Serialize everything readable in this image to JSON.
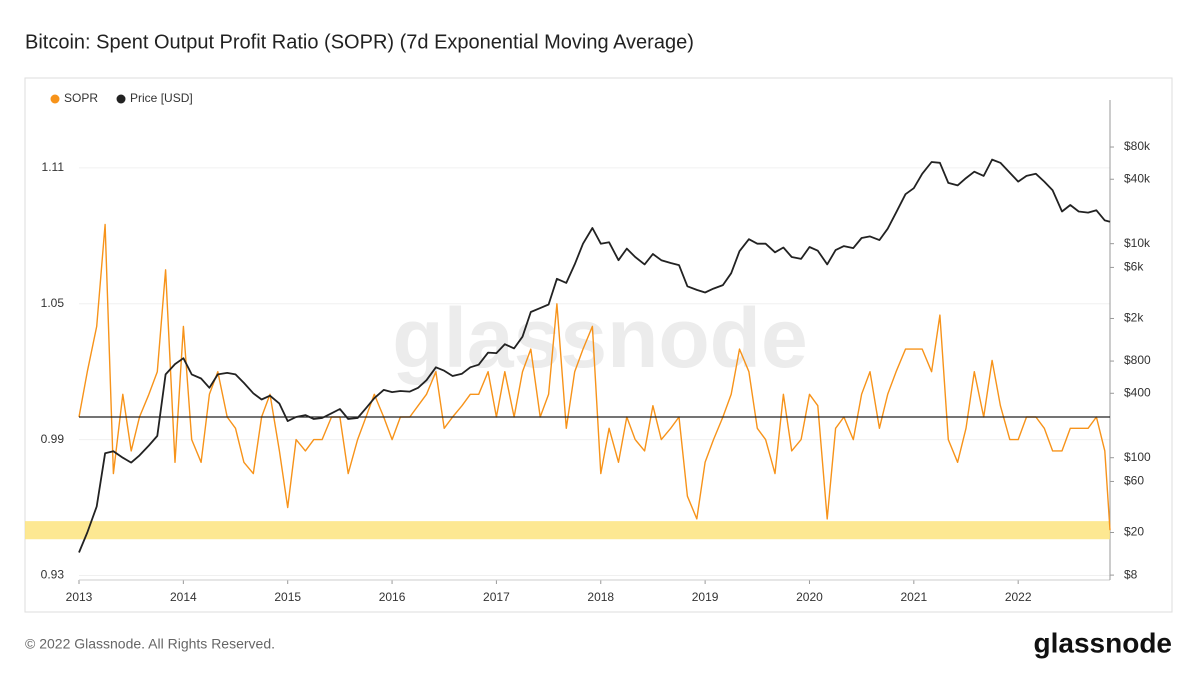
{
  "chart_data": {
    "type": "line",
    "title": "Bitcoin: Spent Output Profit Ratio (SOPR) (7d Exponential Moving Average)",
    "watermark": "glassnode",
    "footer": "© 2022 Glassnode. All Rights Reserved.",
    "brand": "glassnode",
    "x": [
      2013,
      2013.08,
      2013.17,
      2013.25,
      2013.33,
      2013.42,
      2013.5,
      2013.58,
      2013.67,
      2013.75,
      2013.83,
      2013.92,
      2014,
      2014.08,
      2014.17,
      2014.25,
      2014.33,
      2014.42,
      2014.5,
      2014.58,
      2014.67,
      2014.75,
      2014.83,
      2014.92,
      2015,
      2015.08,
      2015.17,
      2015.25,
      2015.33,
      2015.42,
      2015.5,
      2015.58,
      2015.67,
      2015.75,
      2015.83,
      2015.92,
      2016,
      2016.08,
      2016.17,
      2016.25,
      2016.33,
      2016.42,
      2016.5,
      2016.58,
      2016.67,
      2016.75,
      2016.83,
      2016.92,
      2017,
      2017.08,
      2017.17,
      2017.25,
      2017.33,
      2017.42,
      2017.5,
      2017.58,
      2017.67,
      2017.75,
      2017.83,
      2017.92,
      2018,
      2018.08,
      2018.17,
      2018.25,
      2018.33,
      2018.42,
      2018.5,
      2018.58,
      2018.67,
      2018.75,
      2018.83,
      2018.92,
      2019,
      2019.08,
      2019.17,
      2019.25,
      2019.33,
      2019.42,
      2019.5,
      2019.58,
      2019.67,
      2019.75,
      2019.83,
      2019.92,
      2020,
      2020.08,
      2020.17,
      2020.25,
      2020.33,
      2020.42,
      2020.5,
      2020.58,
      2020.67,
      2020.75,
      2020.83,
      2020.92,
      2021,
      2021.08,
      2021.17,
      2021.25,
      2021.33,
      2021.42,
      2021.5,
      2021.58,
      2021.67,
      2021.75,
      2021.83,
      2021.92,
      2022,
      2022.08,
      2022.17,
      2022.25,
      2022.33,
      2022.42,
      2022.5,
      2022.58,
      2022.67,
      2022.75,
      2022.83,
      2022.88
    ],
    "series": [
      {
        "name": "SOPR",
        "color": "#f7931a",
        "values": [
          1.0,
          1.02,
          1.04,
          1.085,
          0.975,
          1.01,
          0.985,
          1.0,
          1.01,
          1.02,
          1.065,
          0.98,
          1.04,
          0.99,
          0.98,
          1.01,
          1.02,
          1.0,
          0.995,
          0.98,
          0.975,
          1.0,
          1.01,
          0.985,
          0.96,
          0.99,
          0.985,
          0.99,
          0.99,
          1.0,
          1.0,
          0.975,
          0.99,
          1.0,
          1.01,
          1.0,
          0.99,
          1.0,
          1.0,
          1.005,
          1.01,
          1.02,
          0.995,
          1.0,
          1.005,
          1.01,
          1.01,
          1.02,
          1.0,
          1.02,
          1.0,
          1.02,
          1.03,
          1.0,
          1.01,
          1.05,
          0.995,
          1.02,
          1.03,
          1.04,
          0.975,
          0.995,
          0.98,
          1.0,
          0.99,
          0.985,
          1.005,
          0.99,
          0.995,
          1.0,
          0.965,
          0.955,
          0.98,
          0.99,
          1.0,
          1.01,
          1.03,
          1.02,
          0.995,
          0.99,
          0.975,
          1.01,
          0.985,
          0.99,
          1.01,
          1.005,
          0.955,
          0.995,
          1.0,
          0.99,
          1.01,
          1.02,
          0.995,
          1.01,
          1.02,
          1.03,
          1.03,
          1.03,
          1.02,
          1.045,
          0.99,
          0.98,
          0.995,
          1.02,
          1.0,
          1.025,
          1.005,
          0.99,
          0.99,
          1.0,
          1.0,
          0.995,
          0.985,
          0.985,
          0.995,
          0.995,
          0.995,
          1.0,
          0.985,
          0.95
        ]
      },
      {
        "name": "Price [USD]",
        "color": "#222222",
        "axis": "y2",
        "values": [
          13,
          20,
          35,
          110,
          115,
          100,
          90,
          105,
          130,
          160,
          600,
          750,
          850,
          600,
          550,
          450,
          600,
          620,
          600,
          500,
          400,
          350,
          380,
          320,
          220,
          240,
          250,
          230,
          235,
          260,
          285,
          230,
          235,
          290,
          360,
          430,
          410,
          420,
          415,
          450,
          530,
          700,
          650,
          580,
          610,
          700,
          740,
          960,
          950,
          1150,
          1050,
          1350,
          2300,
          2500,
          2700,
          4700,
          4300,
          6400,
          10000,
          14000,
          10000,
          10300,
          7000,
          9000,
          7500,
          6400,
          8000,
          7000,
          6600,
          6300,
          4000,
          3700,
          3500,
          3800,
          4100,
          5300,
          8500,
          11000,
          10000,
          10000,
          8300,
          9200,
          7500,
          7200,
          9300,
          8600,
          6400,
          8700,
          9500,
          9100,
          11300,
          11700,
          10800,
          13800,
          19500,
          29000,
          33000,
          45000,
          58000,
          57000,
          37000,
          35000,
          41000,
          47000,
          43000,
          61000,
          57000,
          46000,
          38000,
          43000,
          45000,
          38000,
          31500,
          20000,
          23000,
          20000,
          19500,
          20500,
          16500,
          16000
        ]
      }
    ],
    "xlim": [
      2013,
      2022.88
    ],
    "xticks": [
      2013,
      2014,
      2015,
      2016,
      2017,
      2018,
      2019,
      2020,
      2021,
      2022
    ],
    "ylim": [
      0.928,
      1.14
    ],
    "yticks": [
      0.93,
      0.99,
      1.05,
      1.11
    ],
    "y2lim": [
      7.2,
      220000
    ],
    "y2log": true,
    "y2ticks": [
      {
        "value": 8,
        "label": "$8"
      },
      {
        "value": 20,
        "label": "$20"
      },
      {
        "value": 60,
        "label": "$60"
      },
      {
        "value": 100,
        "label": "$100"
      },
      {
        "value": 400,
        "label": "$400"
      },
      {
        "value": 800,
        "label": "$800"
      },
      {
        "value": 2000,
        "label": "$2k"
      },
      {
        "value": 6000,
        "label": "$6k"
      },
      {
        "value": 10000,
        "label": "$10k"
      },
      {
        "value": 40000,
        "label": "$40k"
      },
      {
        "value": 80000,
        "label": "$80k"
      }
    ],
    "reference_line": 1,
    "reference_color": "#222222",
    "highlight_band": [
      0.946,
      0.954
    ],
    "highlight_color": "#fde47f",
    "grid": true,
    "legend": "top-left"
  }
}
